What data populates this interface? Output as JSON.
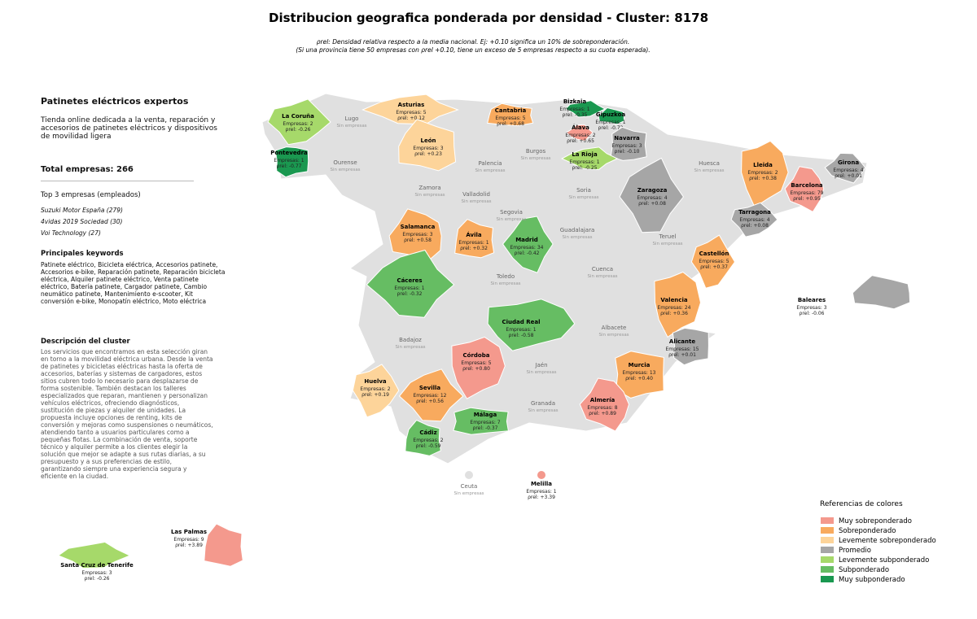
{
  "header": {
    "title": "Distribucion geografica ponderada por densidad - Cluster: 8178",
    "subtitle": [
      "ρrel: Densidad relativa respecto a la media nacional. Ej: +0.10 significa un 10% de sobreponderación.",
      "(Si una provincia tiene 50 empresas con ρrel +0.10, tiene un exceso de 5 empresas respecto a su cuota esperada)."
    ]
  },
  "sidebar": {
    "heading": "Patinetes eléctricos expertos",
    "description": "Tienda online dedicada a la venta, reparación y accesorios de patinetes eléctricos y dispositivos de movilidad ligera",
    "total": "Total empresas: 266",
    "top_label": "Top 3 empresas (empleados)",
    "top_companies": [
      "Suzuki Motor España (279)",
      "4vidas 2019 Sociedad (30)",
      "Voi Technology (27)"
    ],
    "keywords_label": "Principales keywords",
    "keywords": "Patinete eléctrico, Bicicleta eléctrica, Accesorios patinete, Accesorios e-bike, Reparación patinete, Reparación bicicleta eléctrica, Alquiler patinete eléctrico, Venta patinete eléctrico, Batería patinete, Cargador patinete, Cambio neumático patinete, Mantenimiento e-scooter, Kit conversión e-bike, Monopatín eléctrico, Moto eléctrica",
    "cluster_label": "Descripción del cluster",
    "cluster_text": "Los servicios que encontramos en esta selección giran en torno a la movilidad eléctrica urbana. Desde la venta de patinetes y bicicletas eléctricas hasta la oferta de accesorios, baterías y sistemas de cargadores, estos sitios cubren todo lo necesario para desplazarse de forma sostenible. También destacan los talleres especializados que reparan, mantienen y personalizan vehículos eléctricos, ofreciendo diagnósticos, sustitución de piezas y alquiler de unidades. La propuesta incluye opciones de renting, kits de conversión y mejoras como suspensiones o neumáticos, atendiendo tanto a usuarios particulares como a pequeñas flotas. La combinación de venta, soporte técnico y alquiler permite a los clientes elegir la solución que mejor se adapte a sus rutas diarias, a su presupuesto y a sus preferencias de estilo, garantizando siempre una experiencia segura y eficiente en la ciudad."
  },
  "legend": {
    "title": "Referencias de colores",
    "items": [
      {
        "label": "Muy sobreponderado",
        "color": "#f4998d"
      },
      {
        "label": "Sobreponderado",
        "color": "#f8aa5e"
      },
      {
        "label": "Levemente sobreponderado",
        "color": "#fdd49a"
      },
      {
        "label": "Promedio",
        "color": "#a6a6a6"
      },
      {
        "label": "Levemente subponderado",
        "color": "#a6d96a"
      },
      {
        "label": "Subponderado",
        "color": "#66bd63"
      },
      {
        "label": "Muy subponderado",
        "color": "#1a9850"
      }
    ]
  },
  "provinces": [
    {
      "name": "La Coruña",
      "count": "Empresas: 2",
      "rho": "ρrel: -0.26",
      "color": "#a6d96a"
    },
    {
      "name": "Pontevedra",
      "count": "Empresas: 1",
      "rho": "ρrel: -0.77",
      "color": "#1a9850"
    },
    {
      "name": "Asturias",
      "count": "Empresas: 5",
      "rho": "ρrel: +0.12",
      "color": "#fdd49a"
    },
    {
      "name": "Cantabria",
      "count": "Empresas: 5",
      "rho": "ρrel: +0.68",
      "color": "#f8aa5e"
    },
    {
      "name": "Bizkaia",
      "count": "Empresas: 1",
      "rho": "ρrel: -0.35",
      "color": "#1a9850"
    },
    {
      "name": "Gipuzkoa",
      "count": "Empresas: 1",
      "rho": "ρrel: -0.72",
      "color": "#1a9850"
    },
    {
      "name": "Álava",
      "count": "Empresas: 2",
      "rho": "ρrel: +0.65",
      "color": "#f4998d"
    },
    {
      "name": "Navarra",
      "count": "Empresas: 3",
      "rho": "ρrel: -0.10",
      "color": "#a6a6a6"
    },
    {
      "name": "León",
      "count": "Empresas: 3",
      "rho": "ρrel: +0.23",
      "color": "#fdd49a"
    },
    {
      "name": "La Rioja",
      "count": "Empresas: 1",
      "rho": "ρrel: -0.25",
      "color": "#a6d96a"
    },
    {
      "name": "Lleida",
      "count": "Empresas: 2",
      "rho": "ρrel: +0.38",
      "color": "#f8aa5e"
    },
    {
      "name": "Girona",
      "count": "Empresas: 4",
      "rho": "ρrel: +0.01",
      "color": "#a6a6a6"
    },
    {
      "name": "Barcelona",
      "count": "Empresas: 79",
      "rho": "ρrel: +0.95",
      "color": "#f4998d"
    },
    {
      "name": "Zaragoza",
      "count": "Empresas: 4",
      "rho": "ρrel: +0.08",
      "color": "#a6a6a6"
    },
    {
      "name": "Tarragona",
      "count": "Empresas: 4",
      "rho": "ρrel: +0.08",
      "color": "#a6a6a6"
    },
    {
      "name": "Salamanca",
      "count": "Empresas: 3",
      "rho": "ρrel: +0.58",
      "color": "#f8aa5e"
    },
    {
      "name": "Ávila",
      "count": "Empresas: 1",
      "rho": "ρrel: +0.32",
      "color": "#f8aa5e"
    },
    {
      "name": "Madrid",
      "count": "Empresas: 34",
      "rho": "ρrel: -0.42",
      "color": "#66bd63"
    },
    {
      "name": "Castellón",
      "count": "Empresas: 5",
      "rho": "ρrel: +0.37",
      "color": "#f8aa5e"
    },
    {
      "name": "Cáceres",
      "count": "Empresas: 1",
      "rho": "ρrel: -0.32",
      "color": "#66bd63"
    },
    {
      "name": "Valencia",
      "count": "Empresas: 24",
      "rho": "ρrel: +0.36",
      "color": "#f8aa5e"
    },
    {
      "name": "Baleares",
      "count": "Empresas: 3",
      "rho": "ρrel: -0.06",
      "color": "#a6a6a6"
    },
    {
      "name": "Ciudad Real",
      "count": "Empresas: 1",
      "rho": "ρrel: -0.58",
      "color": "#66bd63"
    },
    {
      "name": "Alicante",
      "count": "Empresas: 15",
      "rho": "ρrel: +0.01",
      "color": "#a6a6a6"
    },
    {
      "name": "Córdoba",
      "count": "Empresas: 5",
      "rho": "ρrel: +0.80",
      "color": "#f4998d"
    },
    {
      "name": "Murcia",
      "count": "Empresas: 13",
      "rho": "ρrel: +0.40",
      "color": "#f8aa5e"
    },
    {
      "name": "Huelva",
      "count": "Empresas: 2",
      "rho": "ρrel: +0.19",
      "color": "#fdd49a"
    },
    {
      "name": "Sevilla",
      "count": "Empresas: 12",
      "rho": "ρrel: +0.56",
      "color": "#f8aa5e"
    },
    {
      "name": "Almería",
      "count": "Empresas: 8",
      "rho": "ρrel: +0.89",
      "color": "#f4998d"
    },
    {
      "name": "Málaga",
      "count": "Empresas: 7",
      "rho": "ρrel: -0.37",
      "color": "#66bd63"
    },
    {
      "name": "Cádiz",
      "count": "Empresas: 2",
      "rho": "ρrel: -0.59",
      "color": "#66bd63"
    },
    {
      "name": "Melilla",
      "count": "Empresas: 1",
      "rho": "ρrel: +3.39",
      "color": "#f4998d"
    },
    {
      "name": "Las Palmas",
      "count": "Empresas: 9",
      "rho": "ρrel: +3.89",
      "color": "#f4998d"
    },
    {
      "name": "Santa Cruz de Tenerife",
      "count": "Empresas: 3",
      "rho": "ρrel: -0.26",
      "color": "#a6d96a"
    }
  ],
  "empty_provinces": [
    {
      "name": "Lugo",
      "status": "Sin empresas"
    },
    {
      "name": "Ourense",
      "status": "Sin empresas"
    },
    {
      "name": "Palencia",
      "status": "Sin empresas"
    },
    {
      "name": "Burgos",
      "status": "Sin empresas"
    },
    {
      "name": "Huesca",
      "status": "Sin empresas"
    },
    {
      "name": "Zamora",
      "status": "Sin empresas"
    },
    {
      "name": "Valladolid",
      "status": "Sin empresas"
    },
    {
      "name": "Soria",
      "status": "Sin empresas"
    },
    {
      "name": "Segovia",
      "status": "Sin empresas"
    },
    {
      "name": "Guadalajara",
      "status": "Sin empresas"
    },
    {
      "name": "Teruel",
      "status": "Sin empresas"
    },
    {
      "name": "Toledo",
      "status": "Sin empresas"
    },
    {
      "name": "Cuenca",
      "status": "Sin empresas"
    },
    {
      "name": "Badajoz",
      "status": "Sin empresas"
    },
    {
      "name": "Albacete",
      "status": "Sin empresas"
    },
    {
      "name": "Jaén",
      "status": "Sin empresas"
    },
    {
      "name": "Granada",
      "status": "Sin empresas"
    },
    {
      "name": "Ceuta",
      "status": "Sin empresas"
    }
  ]
}
